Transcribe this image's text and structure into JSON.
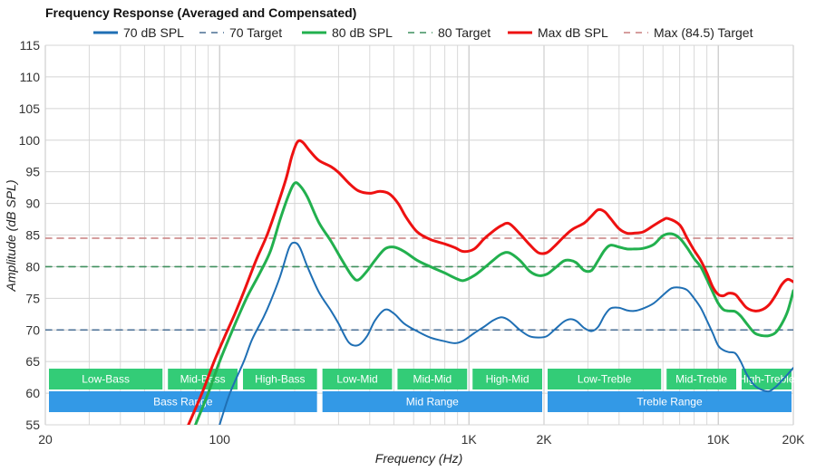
{
  "chart_data": {
    "type": "line",
    "title": "Frequency Response (Averaged and Compensated)",
    "xlabel": "Frequency (Hz)",
    "ylabel": "Amplitude (dB SPL)",
    "x_scale": "log",
    "xlim": [
      20,
      20000
    ],
    "ylim": [
      55,
      115
    ],
    "x_ticks": [
      {
        "value": 20,
        "label": "20"
      },
      {
        "value": 100,
        "label": "100"
      },
      {
        "value": 1000,
        "label": "1K"
      },
      {
        "value": 2000,
        "label": "2K"
      },
      {
        "value": 10000,
        "label": "10K"
      },
      {
        "value": 20000,
        "label": "20K"
      }
    ],
    "y_ticks": [
      55,
      60,
      65,
      70,
      75,
      80,
      85,
      90,
      95,
      100,
      105,
      110,
      115
    ],
    "grid": true,
    "legend_position": "top",
    "series": [
      {
        "name": "70 dB SPL",
        "color": "#1f6fb4",
        "style": "solid",
        "points": [
          [
            100,
            55
          ],
          [
            110,
            60
          ],
          [
            125,
            65
          ],
          [
            135,
            68.5
          ],
          [
            150,
            72
          ],
          [
            160,
            74.5
          ],
          [
            175,
            78.5
          ],
          [
            190,
            83
          ],
          [
            200,
            83.8
          ],
          [
            210,
            83
          ],
          [
            225,
            80
          ],
          [
            250,
            76
          ],
          [
            280,
            73
          ],
          [
            300,
            71
          ],
          [
            330,
            68
          ],
          [
            360,
            67.6
          ],
          [
            390,
            69
          ],
          [
            420,
            71.5
          ],
          [
            460,
            73.2
          ],
          [
            500,
            72.6
          ],
          [
            550,
            71
          ],
          [
            620,
            69.8
          ],
          [
            700,
            68.8
          ],
          [
            800,
            68.2
          ],
          [
            880,
            67.9
          ],
          [
            950,
            68.3
          ],
          [
            1050,
            69.5
          ],
          [
            1150,
            70.5
          ],
          [
            1250,
            71.5
          ],
          [
            1350,
            72
          ],
          [
            1450,
            71.5
          ],
          [
            1600,
            70
          ],
          [
            1750,
            69
          ],
          [
            1900,
            68.8
          ],
          [
            2050,
            69
          ],
          [
            2200,
            70
          ],
          [
            2400,
            71.3
          ],
          [
            2550,
            71.7
          ],
          [
            2700,
            71.4
          ],
          [
            2900,
            70.3
          ],
          [
            3100,
            69.8
          ],
          [
            3300,
            70.5
          ],
          [
            3500,
            72.3
          ],
          [
            3700,
            73.4
          ],
          [
            4000,
            73.5
          ],
          [
            4300,
            73.1
          ],
          [
            4600,
            73
          ],
          [
            5000,
            73.4
          ],
          [
            5500,
            74.2
          ],
          [
            6000,
            75.5
          ],
          [
            6500,
            76.6
          ],
          [
            7000,
            76.7
          ],
          [
            7500,
            76.3
          ],
          [
            8000,
            75
          ],
          [
            8500,
            73.5
          ],
          [
            9000,
            71.5
          ],
          [
            9500,
            69.5
          ],
          [
            10000,
            67.5
          ],
          [
            10500,
            66.8
          ],
          [
            11000,
            66.5
          ],
          [
            11700,
            66.3
          ],
          [
            12300,
            65
          ],
          [
            13000,
            63
          ],
          [
            14000,
            61.2
          ],
          [
            15000,
            60.5
          ],
          [
            16000,
            60.3
          ],
          [
            17000,
            61
          ],
          [
            18000,
            62
          ],
          [
            19000,
            63
          ],
          [
            20000,
            64
          ]
        ]
      },
      {
        "name": "70 Target",
        "color": "#4a6f94",
        "style": "dashed",
        "points": [
          [
            20,
            70
          ],
          [
            20000,
            70
          ]
        ]
      },
      {
        "name": "80 dB SPL",
        "color": "#22b04e",
        "style": "solid",
        "points": [
          [
            80,
            55
          ],
          [
            90,
            60
          ],
          [
            100,
            65
          ],
          [
            110,
            69
          ],
          [
            120,
            72.5
          ],
          [
            130,
            75.5
          ],
          [
            145,
            79
          ],
          [
            160,
            82.5
          ],
          [
            175,
            87.5
          ],
          [
            190,
            91.5
          ],
          [
            200,
            93.2
          ],
          [
            210,
            92.8
          ],
          [
            225,
            91
          ],
          [
            250,
            87
          ],
          [
            280,
            84
          ],
          [
            310,
            81
          ],
          [
            340,
            78.5
          ],
          [
            360,
            77.9
          ],
          [
            390,
            79.3
          ],
          [
            420,
            81
          ],
          [
            460,
            82.8
          ],
          [
            500,
            83.1
          ],
          [
            550,
            82.4
          ],
          [
            620,
            81
          ],
          [
            700,
            80
          ],
          [
            800,
            79
          ],
          [
            880,
            78.2
          ],
          [
            950,
            77.8
          ],
          [
            1050,
            78.6
          ],
          [
            1150,
            79.8
          ],
          [
            1250,
            81
          ],
          [
            1350,
            82
          ],
          [
            1450,
            82.2
          ],
          [
            1600,
            81
          ],
          [
            1750,
            79.3
          ],
          [
            1900,
            78.6
          ],
          [
            2050,
            78.8
          ],
          [
            2200,
            79.7
          ],
          [
            2400,
            80.9
          ],
          [
            2550,
            81
          ],
          [
            2700,
            80.6
          ],
          [
            2900,
            79.4
          ],
          [
            3100,
            79.4
          ],
          [
            3300,
            81
          ],
          [
            3500,
            82.6
          ],
          [
            3700,
            83.4
          ],
          [
            4000,
            83.1
          ],
          [
            4300,
            82.8
          ],
          [
            4600,
            82.8
          ],
          [
            5000,
            82.9
          ],
          [
            5500,
            83.5
          ],
          [
            6000,
            84.9
          ],
          [
            6500,
            85.2
          ],
          [
            7000,
            84.5
          ],
          [
            7500,
            83
          ],
          [
            8000,
            81.3
          ],
          [
            8500,
            80
          ],
          [
            9000,
            78
          ],
          [
            9500,
            76
          ],
          [
            10000,
            74.2
          ],
          [
            10500,
            73.2
          ],
          [
            11000,
            73
          ],
          [
            11700,
            72.9
          ],
          [
            12300,
            72.2
          ],
          [
            13000,
            71
          ],
          [
            14000,
            69.5
          ],
          [
            15000,
            69.1
          ],
          [
            16000,
            69.1
          ],
          [
            17000,
            69.6
          ],
          [
            18000,
            71
          ],
          [
            19000,
            73
          ],
          [
            20000,
            76.2
          ]
        ]
      },
      {
        "name": "80 Target",
        "color": "#3f8f5e",
        "style": "dashed",
        "points": [
          [
            20,
            80
          ],
          [
            20000,
            80
          ]
        ]
      },
      {
        "name": "Max dB SPL",
        "color": "#ee1111",
        "style": "solid",
        "points": [
          [
            75,
            55
          ],
          [
            85,
            60
          ],
          [
            95,
            65
          ],
          [
            105,
            69
          ],
          [
            115,
            72.5
          ],
          [
            125,
            76
          ],
          [
            140,
            81
          ],
          [
            155,
            85
          ],
          [
            170,
            89.5
          ],
          [
            185,
            94
          ],
          [
            195,
            97.5
          ],
          [
            205,
            99.7
          ],
          [
            215,
            99.7
          ],
          [
            230,
            98.3
          ],
          [
            250,
            96.8
          ],
          [
            280,
            95.8
          ],
          [
            300,
            94.9
          ],
          [
            330,
            93.2
          ],
          [
            360,
            92
          ],
          [
            400,
            91.6
          ],
          [
            440,
            91.9
          ],
          [
            480,
            91.5
          ],
          [
            520,
            90
          ],
          [
            560,
            87.8
          ],
          [
            620,
            85.5
          ],
          [
            700,
            84.3
          ],
          [
            800,
            83.6
          ],
          [
            880,
            83
          ],
          [
            950,
            82.4
          ],
          [
            1050,
            82.8
          ],
          [
            1150,
            84.4
          ],
          [
            1250,
            85.6
          ],
          [
            1350,
            86.5
          ],
          [
            1450,
            86.8
          ],
          [
            1600,
            85.2
          ],
          [
            1750,
            83.5
          ],
          [
            1900,
            82.2
          ],
          [
            2050,
            82.2
          ],
          [
            2200,
            83.2
          ],
          [
            2400,
            84.7
          ],
          [
            2600,
            85.9
          ],
          [
            2900,
            86.9
          ],
          [
            3100,
            88
          ],
          [
            3300,
            89
          ],
          [
            3500,
            88.7
          ],
          [
            3700,
            87.6
          ],
          [
            4000,
            86
          ],
          [
            4300,
            85.3
          ],
          [
            4600,
            85.3
          ],
          [
            5000,
            85.5
          ],
          [
            5500,
            86.5
          ],
          [
            6000,
            87.4
          ],
          [
            6300,
            87.6
          ],
          [
            7000,
            86.6
          ],
          [
            7500,
            84.5
          ],
          [
            8000,
            82.6
          ],
          [
            8500,
            81
          ],
          [
            9000,
            79
          ],
          [
            9500,
            76.8
          ],
          [
            10000,
            75.6
          ],
          [
            10500,
            75.4
          ],
          [
            11000,
            75.8
          ],
          [
            11700,
            75.6
          ],
          [
            12300,
            74.6
          ],
          [
            13000,
            73.5
          ],
          [
            14000,
            73
          ],
          [
            15000,
            73.2
          ],
          [
            16000,
            74
          ],
          [
            17000,
            75.5
          ],
          [
            18000,
            77.2
          ],
          [
            19000,
            78
          ],
          [
            20000,
            77.6
          ]
        ]
      },
      {
        "name": "Max (84.5) Target",
        "color": "#c97f7f",
        "style": "dashed",
        "points": [
          [
            20,
            84.5
          ],
          [
            20000,
            84.5
          ]
        ]
      }
    ],
    "bands": [
      {
        "label": "Low-Bass",
        "from": 20,
        "to": 60,
        "row": 1,
        "color": "#33cc77"
      },
      {
        "label": "Mid-Bass",
        "from": 60,
        "to": 120,
        "row": 1,
        "color": "#33cc77"
      },
      {
        "label": "High-Bass",
        "from": 120,
        "to": 250,
        "row": 1,
        "color": "#33cc77"
      },
      {
        "label": "Low-Mid",
        "from": 250,
        "to": 500,
        "row": 1,
        "color": "#33cc77"
      },
      {
        "label": "Mid-Mid",
        "from": 500,
        "to": 1000,
        "row": 1,
        "color": "#33cc77"
      },
      {
        "label": "High-Mid",
        "from": 1000,
        "to": 2000,
        "row": 1,
        "color": "#33cc77"
      },
      {
        "label": "Low-Treble",
        "from": 2000,
        "to": 6000,
        "row": 1,
        "color": "#33cc77"
      },
      {
        "label": "Mid-Treble",
        "from": 6000,
        "to": 12000,
        "row": 1,
        "color": "#33cc77"
      },
      {
        "label": "High-Treble",
        "from": 12000,
        "to": 20000,
        "row": 1,
        "color": "#33cc77"
      },
      {
        "label": "Bass Range",
        "from": 20,
        "to": 250,
        "row": 2,
        "color": "#3399e6"
      },
      {
        "label": "Mid Range",
        "from": 250,
        "to": 2000,
        "row": 2,
        "color": "#3399e6"
      },
      {
        "label": "Treble Range",
        "from": 2000,
        "to": 20000,
        "row": 2,
        "color": "#3399e6"
      }
    ]
  }
}
